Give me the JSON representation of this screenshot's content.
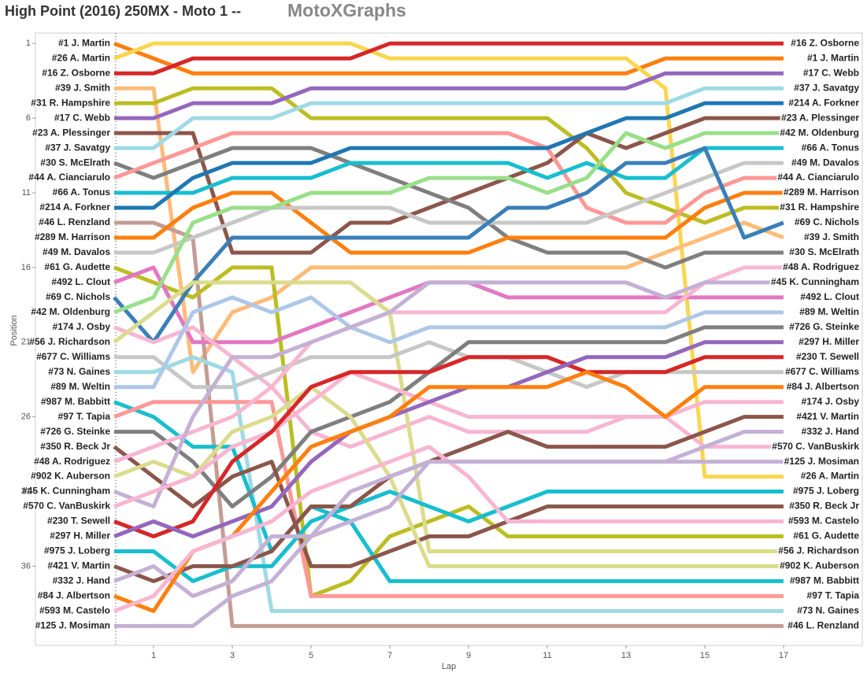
{
  "chart_data": {
    "type": "line",
    "title": "High Point (2016) 250MX - Moto 1 --",
    "title_brand": "MotoXGraphs",
    "x_label": "Lap",
    "y_label": "Position",
    "x": [
      0,
      1,
      2,
      3,
      4,
      5,
      6,
      7,
      8,
      9,
      10,
      11,
      12,
      13,
      14,
      15,
      16,
      17
    ],
    "xlim": [
      -2,
      19
    ],
    "xticks": [
      1,
      3,
      5,
      7,
      9,
      11,
      13,
      15,
      17
    ],
    "ylim": [
      41.3,
      0.3
    ],
    "yticks": [
      1,
      6,
      11,
      16,
      21,
      26,
      31,
      36
    ],
    "series": [
      {
        "name": "#1 J. Martin",
        "color": "#ff7f0e",
        "values": [
          1,
          2,
          3,
          3,
          3,
          3,
          3,
          3,
          3,
          3,
          3,
          3,
          3,
          3,
          2,
          2,
          2,
          2
        ]
      },
      {
        "name": "#26 A. Martin",
        "color": "#fad54f",
        "values": [
          2,
          1,
          1,
          1,
          1,
          1,
          1,
          2,
          2,
          2,
          2,
          2,
          2,
          2,
          4,
          30,
          30,
          30
        ]
      },
      {
        "name": "#16 Z. Osborne",
        "color": "#d62728",
        "values": [
          3,
          3,
          2,
          2,
          2,
          2,
          2,
          1,
          1,
          1,
          1,
          1,
          1,
          1,
          1,
          1,
          1,
          1
        ]
      },
      {
        "name": "#39 J. Smith",
        "color": "#ffbb78",
        "values": [
          4,
          4,
          23,
          19,
          18,
          16,
          16,
          16,
          16,
          16,
          16,
          16,
          16,
          16,
          15,
          14,
          13,
          14
        ]
      },
      {
        "name": "#31 R. Hampshire",
        "color": "#bcbd22",
        "values": [
          5,
          5,
          4,
          4,
          4,
          6,
          6,
          6,
          6,
          6,
          6,
          6,
          8,
          11,
          12,
          13,
          12,
          12
        ]
      },
      {
        "name": "#17 C. Webb",
        "color": "#9467bd",
        "values": [
          6,
          6,
          5,
          5,
          5,
          4,
          4,
          4,
          4,
          4,
          4,
          4,
          4,
          4,
          3,
          3,
          3,
          3
        ]
      },
      {
        "name": "#23 A. Plessinger",
        "color": "#8c564b",
        "values": [
          7,
          7,
          7,
          15,
          15,
          15,
          13,
          13,
          12,
          11,
          10,
          9,
          7,
          8,
          7,
          6,
          6,
          6
        ]
      },
      {
        "name": "#37 J. Savatgy",
        "color": "#9edae5",
        "values": [
          8,
          8,
          6,
          6,
          6,
          5,
          5,
          5,
          5,
          5,
          5,
          5,
          5,
          5,
          5,
          4,
          4,
          4
        ]
      },
      {
        "name": "#30 S. McElrath",
        "color": "#7f7f7f",
        "values": [
          9,
          10,
          9,
          8,
          8,
          8,
          9,
          10,
          11,
          12,
          14,
          15,
          15,
          15,
          16,
          15,
          15,
          15
        ]
      },
      {
        "name": "#44 A. Cianciarulo",
        "color": "#ff9896",
        "values": [
          10,
          9,
          8,
          7,
          7,
          7,
          7,
          7,
          7,
          7,
          7,
          8,
          12,
          13,
          13,
          11,
          10,
          10
        ]
      },
      {
        "name": "#66 A. Tonus",
        "color": "#17becf",
        "values": [
          11,
          11,
          11,
          10,
          10,
          10,
          9,
          9,
          9,
          9,
          9,
          10,
          9,
          10,
          10,
          8,
          8,
          8
        ]
      },
      {
        "name": "#214 A. Forkner",
        "color": "#1f77b4",
        "values": [
          12,
          12,
          10,
          9,
          9,
          9,
          8,
          8,
          8,
          8,
          8,
          8,
          7,
          6,
          6,
          5,
          5,
          5
        ]
      },
      {
        "name": "#46 L. Renzland",
        "color": "#c49c94",
        "values": [
          13,
          13,
          14,
          40,
          40,
          40,
          40,
          40,
          40,
          40,
          40,
          40,
          40,
          40,
          40,
          40,
          40,
          40
        ]
      },
      {
        "name": "#289 M. Harrison",
        "color": "#ff7f0e",
        "values": [
          14,
          14,
          12,
          11,
          11,
          13,
          15,
          15,
          15,
          15,
          14,
          14,
          14,
          14,
          14,
          12,
          11,
          11
        ]
      },
      {
        "name": "#49 M. Davalos",
        "color": "#c7c7c7",
        "values": [
          15,
          15,
          14,
          13,
          12,
          12,
          12,
          12,
          13,
          13,
          13,
          13,
          13,
          12,
          11,
          10,
          9,
          9
        ]
      },
      {
        "name": "#61 G. Audette",
        "color": "#bcbd22",
        "values": [
          16,
          17,
          18,
          16,
          16,
          38,
          37,
          34,
          33,
          32,
          34,
          34,
          34,
          34,
          34,
          34,
          34,
          34
        ]
      },
      {
        "name": "#492 L. Clout",
        "color": "#e377c2",
        "values": [
          17,
          16,
          21,
          21,
          21,
          20,
          19,
          18,
          17,
          17,
          18,
          18,
          18,
          18,
          18,
          18,
          18,
          18
        ]
      },
      {
        "name": "#69 C. Nichols",
        "color": "#3a7fb8",
        "values": [
          18,
          21,
          17,
          14,
          14,
          14,
          14,
          14,
          14,
          14,
          12,
          12,
          11,
          9,
          9,
          8,
          14,
          13
        ]
      },
      {
        "name": "#42 M. Oldenburg",
        "color": "#98df8a",
        "values": [
          19,
          18,
          13,
          12,
          12,
          11,
          11,
          11,
          10,
          10,
          10,
          11,
          10,
          7,
          8,
          7,
          7,
          7
        ]
      },
      {
        "name": "#174 J. Osby",
        "color": "#f7b6d2",
        "values": [
          20,
          21,
          20,
          22,
          24,
          27,
          28,
          27,
          26,
          27,
          27,
          27,
          27,
          26,
          26,
          25,
          25,
          25
        ]
      },
      {
        "name": "#56 J. Richardson",
        "color": "#dbdb8d",
        "values": [
          21,
          19,
          17,
          17,
          17,
          17,
          17,
          19,
          35,
          35,
          35,
          35,
          35,
          35,
          35,
          35,
          35,
          35
        ]
      },
      {
        "name": "#677 C. Williams",
        "color": "#c7c7c7",
        "values": [
          22,
          22,
          24,
          24,
          23,
          22,
          22,
          22,
          21,
          22,
          22,
          23,
          24,
          23,
          23,
          23,
          23,
          23
        ]
      },
      {
        "name": "#73 N. Gaines",
        "color": "#9edae5",
        "values": [
          23,
          23,
          22,
          23,
          39,
          39,
          39,
          39,
          39,
          39,
          39,
          39,
          39,
          39,
          39,
          39,
          39,
          39
        ]
      },
      {
        "name": "#89 M. Weltin",
        "color": "#aec7e8",
        "values": [
          24,
          24,
          19,
          18,
          19,
          18,
          20,
          21,
          20,
          20,
          20,
          20,
          20,
          20,
          20,
          19,
          19,
          19
        ]
      },
      {
        "name": "#987 M. Babbitt",
        "color": "#17becf",
        "values": [
          25,
          26,
          28,
          28,
          35,
          32,
          33,
          37,
          37,
          37,
          37,
          37,
          37,
          37,
          37,
          37,
          37,
          37
        ]
      },
      {
        "name": "#97 T. Tapia",
        "color": "#ff9896",
        "values": [
          26,
          25,
          25,
          25,
          25,
          38,
          38,
          38,
          38,
          38,
          38,
          38,
          38,
          38,
          38,
          38,
          38,
          38
        ]
      },
      {
        "name": "#726 G. Steinke",
        "color": "#7f7f7f",
        "values": [
          27,
          27,
          29,
          32,
          30,
          27,
          26,
          25,
          23,
          21,
          21,
          21,
          21,
          21,
          21,
          20,
          20,
          20
        ]
      },
      {
        "name": "#350 R. Beck Jr",
        "color": "#8c564b",
        "values": [
          28,
          30,
          32,
          30,
          29,
          36,
          36,
          35,
          34,
          34,
          33,
          32,
          32,
          32,
          32,
          32,
          32,
          32
        ]
      },
      {
        "name": "#48 A. Rodriguez",
        "color": "#f7b6d2",
        "values": [
          29,
          28,
          27,
          26,
          24,
          21,
          20,
          19,
          19,
          19,
          19,
          19,
          19,
          19,
          19,
          17,
          16,
          16
        ]
      },
      {
        "name": "#902 K. Auberson",
        "color": "#dbdb8d",
        "values": [
          30,
          29,
          30,
          27,
          26,
          24,
          26,
          30,
          36,
          36,
          36,
          36,
          36,
          36,
          36,
          36,
          36,
          36
        ]
      },
      {
        "name": "#45 K. Cunningham",
        "color": "#c5b0d5",
        "values": [
          31,
          32,
          26,
          22,
          22,
          21,
          20,
          19,
          17,
          17,
          17,
          17,
          17,
          17,
          18,
          17,
          17,
          17
        ]
      },
      {
        "name": "#570 C. VanBuskirk",
        "color": "#f7b6d2",
        "values": [
          32,
          31,
          30,
          28,
          27,
          25,
          23,
          24,
          25,
          26,
          26,
          26,
          26,
          26,
          26,
          28,
          28,
          28
        ]
      },
      {
        "name": "#230 T. Sewell",
        "color": "#d62728",
        "values": [
          33,
          34,
          33,
          29,
          27,
          24,
          23,
          23,
          23,
          22,
          22,
          22,
          23,
          23,
          23,
          22,
          22,
          22
        ]
      },
      {
        "name": "#297 H. Miller",
        "color": "#9467bd",
        "values": [
          34,
          33,
          34,
          33,
          32,
          29,
          27,
          26,
          25,
          24,
          24,
          23,
          22,
          22,
          22,
          21,
          21,
          21
        ]
      },
      {
        "name": "#975 J. Loberg",
        "color": "#17becf",
        "values": [
          35,
          35,
          37,
          36,
          36,
          33,
          32,
          31,
          32,
          33,
          32,
          31,
          31,
          31,
          31,
          31,
          31,
          31
        ]
      },
      {
        "name": "#421 V. Martin",
        "color": "#8c564b",
        "values": [
          36,
          37,
          36,
          36,
          35,
          32,
          32,
          30,
          29,
          28,
          27,
          28,
          28,
          28,
          28,
          27,
          26,
          26
        ]
      },
      {
        "name": "#332 J. Hand",
        "color": "#c5b0d5",
        "values": [
          37,
          36,
          38,
          37,
          34,
          34,
          31,
          30,
          29,
          29,
          29,
          29,
          29,
          29,
          29,
          28,
          27,
          27
        ]
      },
      {
        "name": "#84 J. Albertson",
        "color": "#ff7f0e",
        "values": [
          38,
          39,
          35,
          34,
          31,
          28,
          27,
          26,
          24,
          24,
          24,
          24,
          23,
          24,
          26,
          24,
          24,
          24
        ]
      },
      {
        "name": "#593 M. Castelo",
        "color": "#f7b6d2",
        "values": [
          39,
          38,
          35,
          34,
          33,
          31,
          30,
          29,
          28,
          30,
          33,
          33,
          33,
          33,
          33,
          33,
          33,
          33
        ]
      },
      {
        "name": "#125 J. Mosiman",
        "color": "#c5b0d5",
        "values": [
          40,
          40,
          40,
          38,
          37,
          34,
          33,
          32,
          29,
          29,
          29,
          29,
          29,
          29,
          29,
          29,
          29,
          29
        ]
      }
    ]
  }
}
